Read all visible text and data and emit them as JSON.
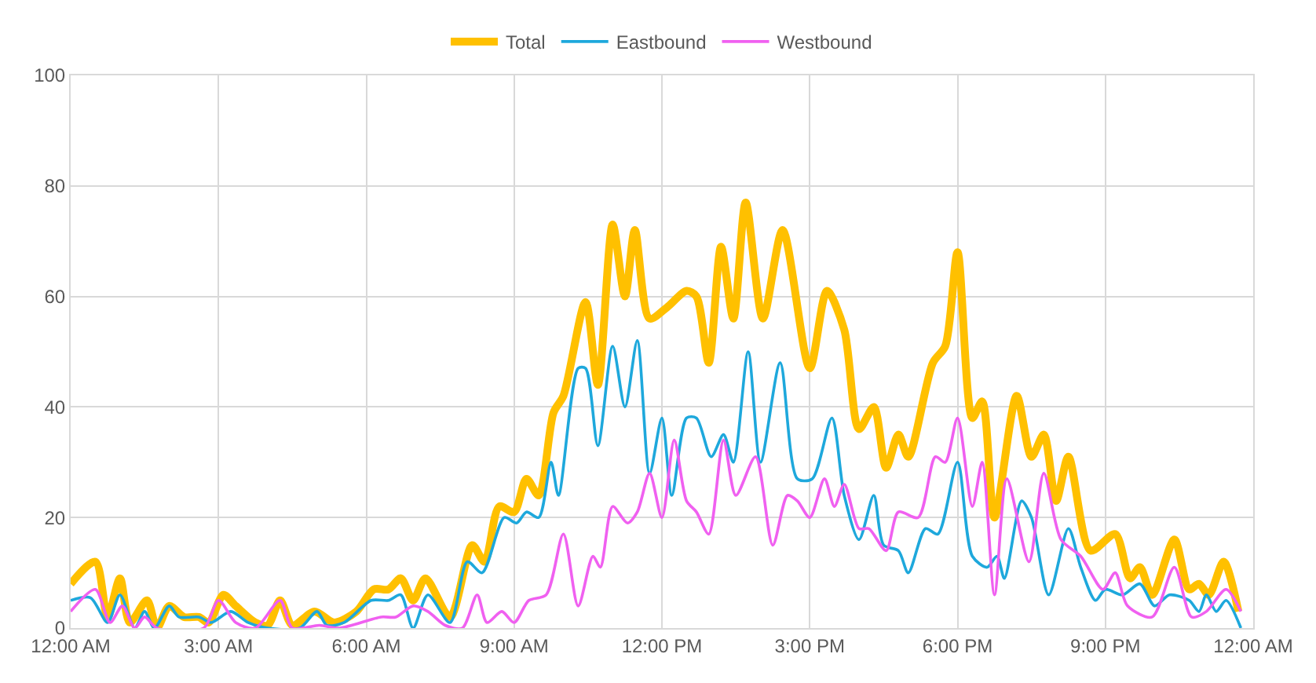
{
  "chart_data": {
    "type": "line",
    "xlim": [
      0,
      24
    ],
    "xticks": [
      {
        "value": 0,
        "label": "12:00 AM"
      },
      {
        "value": 3,
        "label": "3:00 AM"
      },
      {
        "value": 6,
        "label": "6:00 AM"
      },
      {
        "value": 9,
        "label": "9:00 AM"
      },
      {
        "value": 12,
        "label": "12:00 PM"
      },
      {
        "value": 15,
        "label": "3:00 PM"
      },
      {
        "value": 18,
        "label": "6:00 PM"
      },
      {
        "value": 21,
        "label": "9:00 PM"
      },
      {
        "value": 24,
        "label": "12:00 AM"
      }
    ],
    "ylim": [
      0,
      100
    ],
    "yticks": [
      0,
      20,
      40,
      60,
      80,
      100
    ],
    "grid": true,
    "legend": "top",
    "marker": "none",
    "line_style": "solid",
    "series": [
      {
        "name": "Total",
        "color": "#ffc000",
        "x": [
          0,
          0.5,
          0.75,
          1.0,
          1.2,
          1.55,
          1.75,
          2.0,
          2.3,
          2.6,
          2.8,
          3.1,
          3.35,
          3.75,
          4.0,
          4.25,
          4.5,
          4.95,
          5.35,
          5.8,
          6.15,
          6.45,
          6.7,
          6.95,
          7.2,
          7.7,
          8.15,
          8.4,
          8.7,
          9.0,
          9.25,
          9.5,
          9.8,
          10.0,
          10.45,
          10.7,
          11.0,
          11.25,
          11.45,
          11.75,
          12.1,
          12.5,
          12.7,
          12.95,
          13.2,
          13.45,
          13.7,
          14.05,
          14.45,
          15.0,
          15.35,
          15.7,
          16.0,
          16.3,
          16.55,
          16.8,
          17.0,
          17.5,
          17.75,
          18.0,
          18.3,
          18.5,
          18.75,
          19.2,
          19.5,
          19.75,
          20.0,
          20.25,
          20.7,
          21.2,
          21.5,
          21.7,
          21.95,
          22.4,
          22.7,
          22.9,
          23.1,
          23.4,
          23.7
        ],
        "values": [
          8,
          12,
          2,
          9,
          1,
          5,
          0,
          4,
          2,
          2,
          1,
          6,
          4,
          1,
          0.5,
          5,
          0.5,
          3,
          1,
          3,
          7,
          7,
          9,
          5,
          9,
          2,
          15,
          12,
          22,
          21,
          27,
          24,
          39,
          42,
          59,
          44,
          73,
          60,
          72,
          56,
          58,
          61,
          60,
          48,
          69,
          56,
          77,
          56,
          72,
          47,
          61,
          54,
          36,
          40,
          29,
          35,
          31,
          48,
          51,
          68,
          38,
          41,
          20,
          42,
          31,
          35,
          23,
          31,
          14,
          17,
          9,
          11,
          6,
          16,
          7,
          8,
          6,
          12,
          3
        ]
      },
      {
        "name": "Eastbound",
        "color": "#1ea8dc",
        "x": [
          0,
          0.4,
          0.75,
          1.0,
          1.3,
          1.5,
          1.7,
          2.0,
          2.2,
          2.6,
          2.85,
          3.25,
          3.6,
          4.0,
          4.65,
          5.0,
          5.2,
          5.55,
          6.1,
          6.45,
          6.7,
          6.95,
          7.25,
          7.7,
          8.05,
          8.35,
          8.8,
          9.05,
          9.25,
          9.5,
          9.75,
          9.9,
          10.3,
          10.45,
          10.7,
          11.0,
          11.25,
          11.5,
          11.75,
          12.0,
          12.2,
          12.5,
          12.7,
          13.0,
          13.25,
          13.45,
          13.75,
          14.0,
          14.4,
          14.75,
          15.05,
          15.45,
          15.7,
          16.0,
          16.3,
          16.5,
          16.8,
          17.0,
          17.35,
          17.6,
          18.0,
          18.3,
          18.6,
          18.8,
          18.95,
          19.3,
          19.5,
          19.85,
          20.25,
          20.5,
          20.8,
          21.0,
          21.35,
          21.7,
          22.0,
          22.3,
          22.7,
          22.9,
          23.05,
          23.25,
          23.45,
          23.75
        ],
        "values": [
          5,
          5.5,
          1,
          6,
          0,
          3,
          0,
          4,
          2,
          2,
          1,
          3,
          1,
          0,
          0,
          3,
          0.5,
          1,
          5,
          5,
          6,
          0,
          6,
          1,
          12,
          10,
          20,
          19,
          21,
          20,
          30,
          24,
          47,
          47,
          33,
          51,
          40,
          52,
          28,
          38,
          24,
          38,
          38,
          31,
          35,
          30,
          50,
          30,
          48,
          27,
          27,
          38,
          24,
          16,
          24,
          15,
          14,
          10,
          18,
          17,
          30,
          13,
          11,
          13,
          9,
          23,
          20,
          6,
          18,
          11,
          5,
          7,
          6,
          8,
          4,
          6,
          5,
          3,
          6,
          3,
          5,
          0
        ]
      },
      {
        "name": "Westbound",
        "color": "#f060f0",
        "x": [
          0,
          0.5,
          0.8,
          1.05,
          1.3,
          1.5,
          1.75,
          2.7,
          3.0,
          3.35,
          3.75,
          4.25,
          4.5,
          5.05,
          5.45,
          6.3,
          6.6,
          6.95,
          7.25,
          7.6,
          7.95,
          8.25,
          8.45,
          8.75,
          9.0,
          9.3,
          9.65,
          10.0,
          10.3,
          10.6,
          10.75,
          11.0,
          11.3,
          11.5,
          11.75,
          12.0,
          12.25,
          12.5,
          12.7,
          12.95,
          13.25,
          13.5,
          13.9,
          14.25,
          14.55,
          14.75,
          15.0,
          15.3,
          15.5,
          15.7,
          16.0,
          16.2,
          16.55,
          16.8,
          17.2,
          17.55,
          17.75,
          18.0,
          18.3,
          18.5,
          18.75,
          19.0,
          19.45,
          19.75,
          20.1,
          20.5,
          20.95,
          21.2,
          21.45,
          21.95,
          22.4,
          22.75,
          23.05,
          23.45,
          23.75
        ],
        "values": [
          3,
          7,
          1,
          4,
          0,
          2,
          0,
          0,
          5,
          1,
          0,
          5,
          0,
          0.5,
          0,
          2,
          2,
          4,
          3,
          0.5,
          0,
          6,
          1,
          3,
          1,
          5,
          6,
          17,
          4,
          13,
          11,
          22,
          19,
          21,
          28,
          20,
          34,
          23,
          21,
          17,
          34,
          24,
          31,
          15,
          24,
          23,
          20,
          27,
          22,
          26,
          18,
          18,
          14,
          21,
          20,
          31,
          30,
          38,
          22,
          30,
          6,
          27,
          12,
          28,
          16,
          13,
          7,
          10,
          4,
          2,
          11,
          2,
          3,
          7,
          3
        ]
      }
    ]
  }
}
